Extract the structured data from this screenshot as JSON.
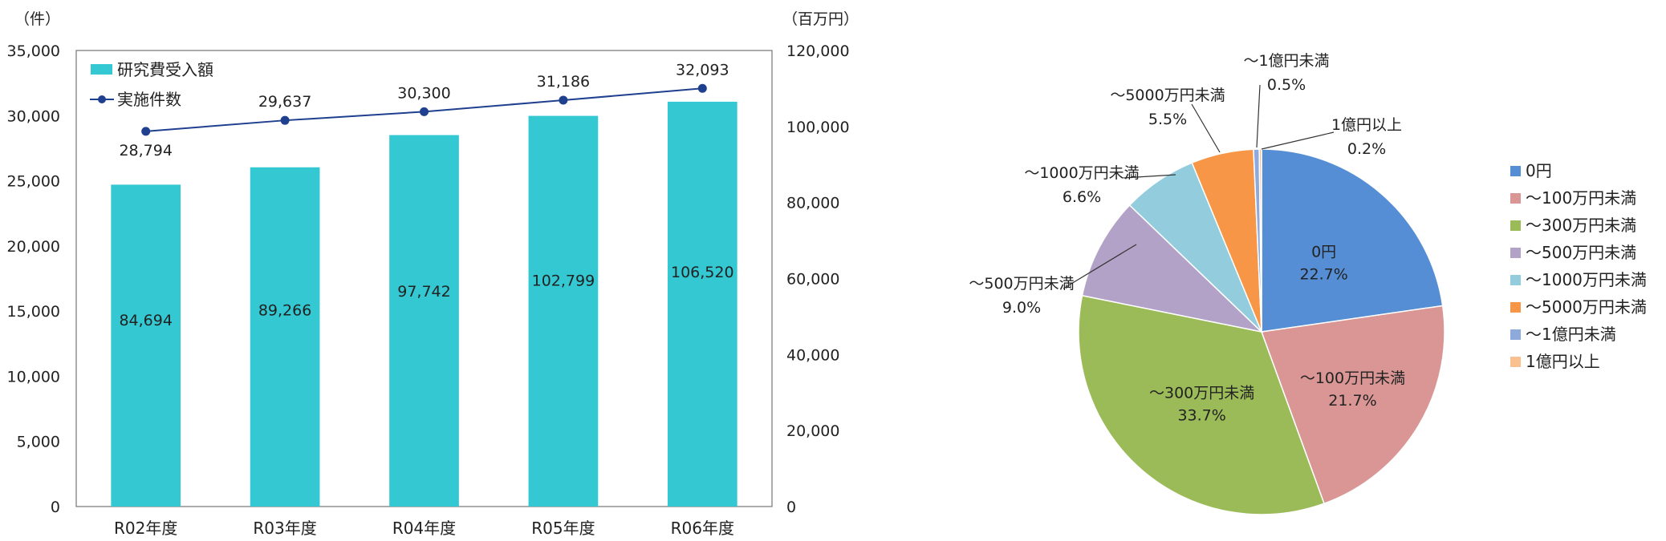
{
  "chart_data": [
    {
      "type": "bar",
      "combo_with": "line",
      "categories": [
        "R02年度",
        "R03年度",
        "R04年度",
        "R05年度",
        "R06年度"
      ],
      "y_left": {
        "unit": "（件）",
        "ticks": [
          "0",
          "5,000",
          "10,000",
          "15,000",
          "20,000",
          "25,000",
          "30,000",
          "35,000"
        ],
        "ylim": [
          0,
          35000
        ]
      },
      "y_right": {
        "unit": "（百万円）",
        "ticks": [
          "0",
          "20,000",
          "40,000",
          "60,000",
          "80,000",
          "100,000",
          "120,000"
        ],
        "ylim": [
          0,
          120000
        ]
      },
      "series": [
        {
          "name": "研究費受入額",
          "type": "bar",
          "axis": "right",
          "color": "#33c8d2",
          "values": [
            84694,
            89266,
            97742,
            102799,
            106520
          ],
          "labels": [
            "84,694",
            "89,266",
            "97,742",
            "102,799",
            "106,520"
          ]
        },
        {
          "name": "実施件数",
          "type": "line",
          "axis": "left",
          "color": "#1f3f8f",
          "values": [
            28794,
            29637,
            30300,
            31186,
            32093
          ],
          "labels": [
            "28,794",
            "29,637",
            "30,300",
            "31,186",
            "32,093"
          ]
        }
      ],
      "legend": "top-left",
      "grid": false
    },
    {
      "type": "pie",
      "start_angle": "12 o'clock",
      "direction": "clockwise",
      "legend": "right",
      "slices": [
        {
          "name": "0円",
          "value": 22.7,
          "pct_label": "22.7%",
          "color": "#558ed5"
        },
        {
          "name": "～100万円未満",
          "value": 21.7,
          "pct_label": "21.7%",
          "color": "#d99694"
        },
        {
          "name": "～300万円未満",
          "value": 33.7,
          "pct_label": "33.7%",
          "color": "#9bbb59"
        },
        {
          "name": "～500万円未満",
          "value": 9.0,
          "pct_label": "9.0%",
          "color": "#b3a2c7"
        },
        {
          "name": "～1000万円未満",
          "value": 6.6,
          "pct_label": "6.6%",
          "color": "#93cddd"
        },
        {
          "name": "～5000万円未満",
          "value": 5.5,
          "pct_label": "5.5%",
          "color": "#f79646"
        },
        {
          "name": "～1億円未満",
          "value": 0.5,
          "pct_label": "0.5%",
          "color": "#8ea9db"
        },
        {
          "name": "1億円以上",
          "value": 0.2,
          "pct_label": "0.2%",
          "color": "#fac090"
        }
      ]
    }
  ]
}
